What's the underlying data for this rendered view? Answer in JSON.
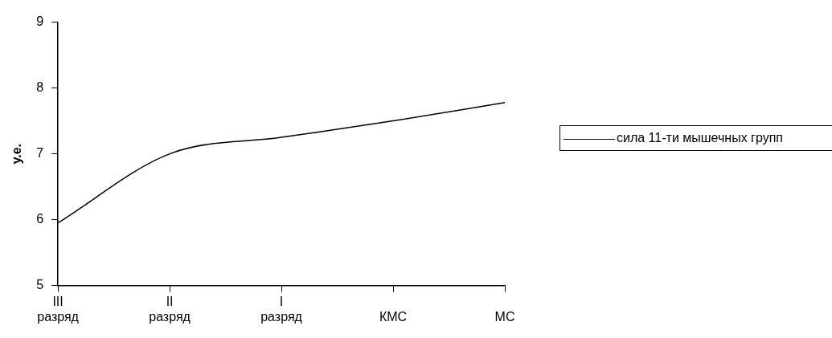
{
  "chart_data": {
    "type": "line",
    "ylabel": "у.е.",
    "categories": [
      "III разряд",
      "II разряд",
      "I разряд",
      "КМС",
      "МС"
    ],
    "series": [
      {
        "name": "сила 11-ти мышечных групп",
        "color": "#000000",
        "values": [
          5.95,
          7.0,
          7.25,
          7.5,
          7.78
        ]
      }
    ],
    "ylim": [
      5,
      9
    ],
    "yticks": [
      5,
      6,
      7,
      8,
      9
    ],
    "grid": false,
    "legend": "right",
    "marker": "none",
    "line_style": "solid"
  }
}
